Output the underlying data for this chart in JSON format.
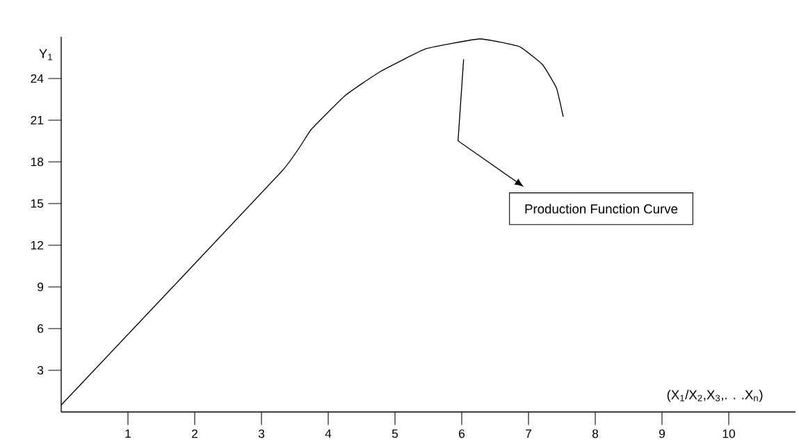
{
  "chart_data": {
    "type": "line",
    "xlabel": "(X$_{1}$/X$_{2}$,X$_{3}$,. . .X$_{n}$)",
    "ylabel": "Y$_{1}$",
    "x": [
      0,
      3.3,
      3.74,
      4.26,
      4.78,
      5.47,
      6.27,
      6.86,
      7.21,
      7.42,
      7.52
    ],
    "values": [
      0.5,
      17.3,
      20.3,
      22.8,
      24.5,
      26.15,
      26.85,
      26.3,
      25.0,
      23.3,
      21.25
    ],
    "color": "#000000",
    "marker": "none",
    "line_style": "solid",
    "xlim": [
      0,
      11
    ],
    "ylim": [
      0,
      27
    ],
    "xticks": [
      1,
      2,
      3,
      4,
      5,
      6,
      7,
      8,
      9,
      10
    ],
    "yticks": [
      3,
      6,
      9,
      12,
      15,
      18,
      21,
      24
    ],
    "annotations": [
      "Production Function Curve"
    ]
  }
}
